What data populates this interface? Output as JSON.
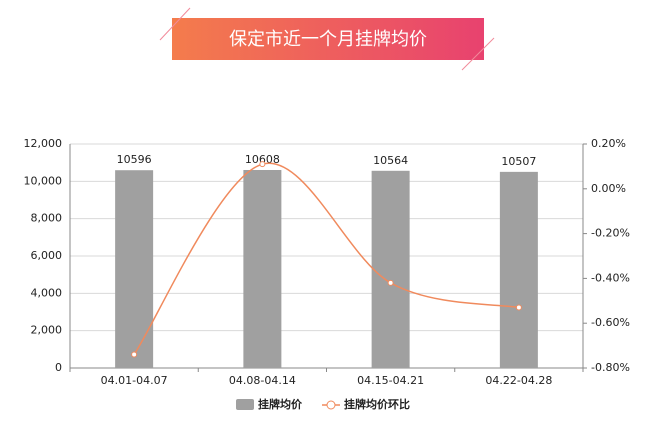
{
  "chart_data": {
    "type": "bar",
    "title": "保定市近一个月挂牌均价",
    "categories": [
      "04.01-04.07",
      "04.08-04.14",
      "04.15-04.21",
      "04.22-04.28"
    ],
    "series": [
      {
        "name": "挂牌均价",
        "type": "bar",
        "color": "#a0a0a0",
        "values": [
          10596,
          10608,
          10564,
          10507
        ]
      },
      {
        "name": "挂牌均价环比",
        "type": "line",
        "axis": "y2",
        "color": "#f08a5d",
        "values": [
          -0.74,
          0.11,
          -0.42,
          -0.53
        ]
      }
    ],
    "ylim": [
      0,
      12000
    ],
    "yticks": [
      0,
      {
        "value": 2000,
        "label": "2,000"
      },
      {
        "value": 4000,
        "label": "4,000"
      },
      {
        "value": 6000,
        "label": "6,000"
      },
      {
        "value": 8000,
        "label": "8,000"
      },
      {
        "value": 10000,
        "label": "10,000"
      },
      {
        "value": 12000,
        "label": "12,000"
      }
    ],
    "y2lim": [
      -0.8,
      0.2
    ],
    "y2ticks": [
      {
        "value": -0.8,
        "label": "-0.80%"
      },
      {
        "value": -0.6,
        "label": "-0.60%"
      },
      {
        "value": -0.4,
        "label": "-0.40%"
      },
      {
        "value": -0.2,
        "label": "-0.20%"
      },
      {
        "value": 0,
        "label": "0.00%"
      },
      {
        "value": 0.2,
        "label": "0.20%"
      }
    ],
    "grid": true
  }
}
